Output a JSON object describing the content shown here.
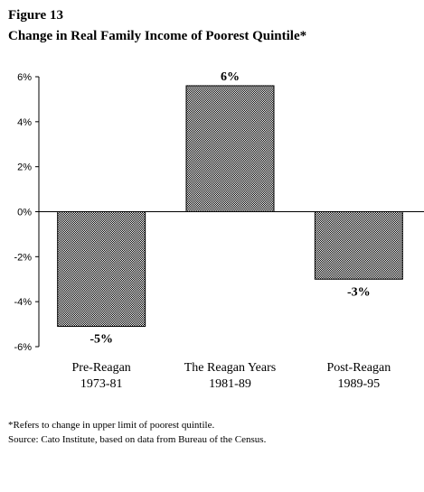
{
  "header": {
    "figure_label": "Figure 13",
    "title": "Change in Real Family Income of Poorest Quintile*"
  },
  "chart_data": {
    "type": "bar",
    "categories": [
      [
        "Pre-Reagan",
        "1973-81"
      ],
      [
        "The Reagan Years",
        "1981-89"
      ],
      [
        "Post-Reagan",
        "1989-95"
      ]
    ],
    "values": [
      -5.1,
      5.6,
      -3.0
    ],
    "data_labels": [
      "-5%",
      "6%",
      "-3%"
    ],
    "yticks": [
      6,
      4,
      2,
      0,
      -2,
      -4,
      -6
    ],
    "ytick_labels": [
      "6%",
      "4%",
      "2%",
      "0%",
      "-2%",
      "-4%",
      "-6%"
    ],
    "ylim": [
      -6,
      6
    ],
    "grid": false,
    "legend": "none",
    "bar_fill": "#8a8a8a"
  },
  "footnotes": {
    "note": "*Refers to change in upper limit of poorest quintile.",
    "source": "Source: Cato Institute, based on data from Bureau of the Census."
  }
}
